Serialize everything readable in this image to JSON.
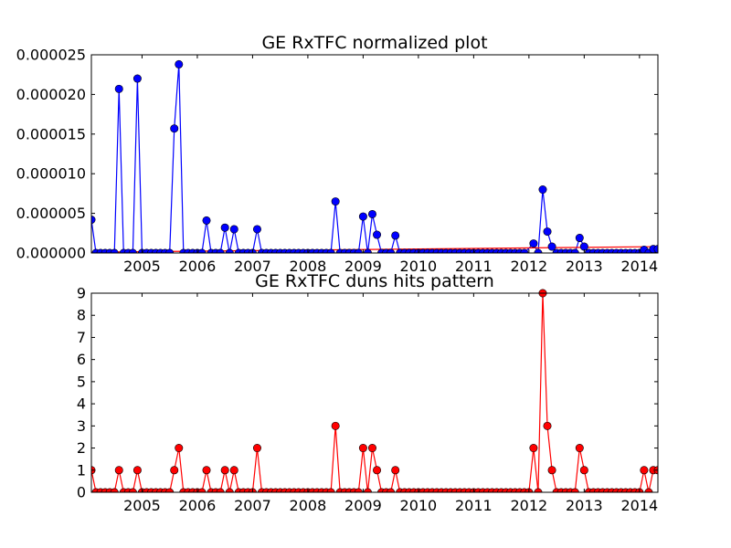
{
  "chart_data": [
    {
      "type": "line",
      "title": "GE RxTFC normalized plot",
      "xlabel": "",
      "ylabel": "",
      "x_ticks": [
        "2005",
        "2006",
        "2007",
        "2008",
        "2009",
        "2010",
        "2011",
        "2012",
        "2013",
        "2014"
      ],
      "y_ticks": [
        "0.000000",
        "0.000005",
        "0.000010",
        "0.000015",
        "0.000020",
        "0.000025"
      ],
      "xlim": [
        "2004-02",
        "2014-05"
      ],
      "ylim": [
        0,
        2.5e-05
      ],
      "grid": false,
      "series": [
        {
          "color": "#0000ff",
          "marker": "circle",
          "points": [
            [
              "2004-02",
              4.2e-06
            ],
            [
              "2004-03",
              0
            ],
            [
              "2004-04",
              0
            ],
            [
              "2004-05",
              0
            ],
            [
              "2004-06",
              0
            ],
            [
              "2004-07",
              0
            ],
            [
              "2004-08",
              2.07e-05
            ],
            [
              "2004-09",
              0
            ],
            [
              "2004-10",
              0
            ],
            [
              "2004-11",
              0
            ],
            [
              "2004-12",
              2.2e-05
            ],
            [
              "2005-01",
              0
            ],
            [
              "2005-02",
              0
            ],
            [
              "2005-03",
              0
            ],
            [
              "2005-04",
              0
            ],
            [
              "2005-05",
              0
            ],
            [
              "2005-06",
              0
            ],
            [
              "2005-07",
              0
            ],
            [
              "2005-08",
              1.57e-05
            ],
            [
              "2005-09",
              2.38e-05
            ],
            [
              "2005-10",
              0
            ],
            [
              "2005-11",
              0
            ],
            [
              "2005-12",
              0
            ],
            [
              "2006-01",
              0
            ],
            [
              "2006-02",
              0
            ],
            [
              "2006-03",
              4.1e-06
            ],
            [
              "2006-04",
              0
            ],
            [
              "2006-05",
              0
            ],
            [
              "2006-06",
              0
            ],
            [
              "2006-07",
              3.2e-06
            ],
            [
              "2006-08",
              0
            ],
            [
              "2006-09",
              3e-06
            ],
            [
              "2006-10",
              0
            ],
            [
              "2006-11",
              0
            ],
            [
              "2006-12",
              0
            ],
            [
              "2007-01",
              0
            ],
            [
              "2007-02",
              3e-06
            ],
            [
              "2007-03",
              0
            ],
            [
              "2007-04",
              0
            ],
            [
              "2007-05",
              0
            ],
            [
              "2007-06",
              0
            ],
            [
              "2007-07",
              0
            ],
            [
              "2007-08",
              0
            ],
            [
              "2007-09",
              0
            ],
            [
              "2007-10",
              0
            ],
            [
              "2007-11",
              0
            ],
            [
              "2007-12",
              0
            ],
            [
              "2008-01",
              0
            ],
            [
              "2008-02",
              0
            ],
            [
              "2008-03",
              0
            ],
            [
              "2008-04",
              0
            ],
            [
              "2008-05",
              0
            ],
            [
              "2008-06",
              0
            ],
            [
              "2008-07",
              6.5e-06
            ],
            [
              "2008-08",
              0
            ],
            [
              "2008-09",
              0
            ],
            [
              "2008-10",
              0
            ],
            [
              "2008-11",
              0
            ],
            [
              "2008-12",
              0
            ],
            [
              "2009-01",
              4.6e-06
            ],
            [
              "2009-02",
              0
            ],
            [
              "2009-03",
              4.9e-06
            ],
            [
              "2009-04",
              2.3e-06
            ],
            [
              "2009-05",
              0
            ],
            [
              "2009-06",
              0
            ],
            [
              "2009-07",
              0
            ],
            [
              "2009-08",
              2.2e-06
            ],
            [
              "2009-09",
              0
            ],
            [
              "2009-10",
              0
            ],
            [
              "2009-11",
              0
            ],
            [
              "2009-12",
              0
            ],
            [
              "2010-01",
              0
            ],
            [
              "2010-02",
              0
            ],
            [
              "2010-03",
              0
            ],
            [
              "2010-04",
              0
            ],
            [
              "2010-05",
              0
            ],
            [
              "2010-06",
              0
            ],
            [
              "2010-07",
              0
            ],
            [
              "2010-08",
              0
            ],
            [
              "2010-09",
              0
            ],
            [
              "2010-10",
              0
            ],
            [
              "2010-11",
              0
            ],
            [
              "2010-12",
              0
            ],
            [
              "2011-01",
              0
            ],
            [
              "2011-02",
              0
            ],
            [
              "2011-03",
              0
            ],
            [
              "2011-04",
              0
            ],
            [
              "2011-05",
              0
            ],
            [
              "2011-06",
              0
            ],
            [
              "2011-07",
              0
            ],
            [
              "2011-08",
              0
            ],
            [
              "2011-09",
              0
            ],
            [
              "2011-10",
              0
            ],
            [
              "2011-11",
              0
            ],
            [
              "2011-12",
              0
            ],
            [
              "2012-02",
              1.2e-06
            ],
            [
              "2012-03",
              0
            ],
            [
              "2012-04",
              8e-06
            ],
            [
              "2012-05",
              2.7e-06
            ],
            [
              "2012-06",
              8e-07
            ],
            [
              "2012-07",
              0
            ],
            [
              "2012-08",
              0
            ],
            [
              "2012-09",
              0
            ],
            [
              "2012-10",
              0
            ],
            [
              "2012-11",
              0
            ],
            [
              "2012-12",
              1.9e-06
            ],
            [
              "2013-01",
              8e-07
            ],
            [
              "2013-02",
              0
            ],
            [
              "2013-03",
              0
            ],
            [
              "2013-04",
              0
            ],
            [
              "2013-05",
              0
            ],
            [
              "2013-06",
              0
            ],
            [
              "2013-07",
              0
            ],
            [
              "2013-08",
              0
            ],
            [
              "2013-09",
              0
            ],
            [
              "2013-10",
              0
            ],
            [
              "2013-11",
              0
            ],
            [
              "2013-12",
              0
            ],
            [
              "2014-01",
              0
            ],
            [
              "2014-02",
              4e-07
            ],
            [
              "2014-03",
              0
            ],
            [
              "2014-04",
              5e-07
            ],
            [
              "2014-05",
              5e-07
            ]
          ]
        },
        {
          "color": "#ff0000",
          "marker": "none",
          "points": [
            [
              "2004-02",
              1e-07
            ],
            [
              "2014-05",
              8e-07
            ]
          ]
        }
      ]
    },
    {
      "type": "line",
      "title": "GE RxTFC duns hits pattern",
      "xlabel": "",
      "ylabel": "",
      "x_ticks": [
        "2005",
        "2006",
        "2007",
        "2008",
        "2009",
        "2010",
        "2011",
        "2012",
        "2013",
        "2014"
      ],
      "y_ticks": [
        "0",
        "1",
        "2",
        "3",
        "4",
        "5",
        "6",
        "7",
        "8",
        "9"
      ],
      "xlim": [
        "2004-02",
        "2014-05"
      ],
      "ylim": [
        0,
        9
      ],
      "grid": false,
      "series": [
        {
          "color": "#ff0000",
          "marker": "circle",
          "points": [
            [
              "2004-02",
              1
            ],
            [
              "2004-03",
              0
            ],
            [
              "2004-04",
              0
            ],
            [
              "2004-05",
              0
            ],
            [
              "2004-06",
              0
            ],
            [
              "2004-07",
              0
            ],
            [
              "2004-08",
              1
            ],
            [
              "2004-09",
              0
            ],
            [
              "2004-10",
              0
            ],
            [
              "2004-11",
              0
            ],
            [
              "2004-12",
              1
            ],
            [
              "2005-01",
              0
            ],
            [
              "2005-02",
              0
            ],
            [
              "2005-03",
              0
            ],
            [
              "2005-04",
              0
            ],
            [
              "2005-05",
              0
            ],
            [
              "2005-06",
              0
            ],
            [
              "2005-07",
              0
            ],
            [
              "2005-08",
              1
            ],
            [
              "2005-09",
              2
            ],
            [
              "2005-10",
              0
            ],
            [
              "2005-11",
              0
            ],
            [
              "2005-12",
              0
            ],
            [
              "2006-01",
              0
            ],
            [
              "2006-02",
              0
            ],
            [
              "2006-03",
              1
            ],
            [
              "2006-04",
              0
            ],
            [
              "2006-05",
              0
            ],
            [
              "2006-06",
              0
            ],
            [
              "2006-07",
              1
            ],
            [
              "2006-08",
              0
            ],
            [
              "2006-09",
              1
            ],
            [
              "2006-10",
              0
            ],
            [
              "2006-11",
              0
            ],
            [
              "2006-12",
              0
            ],
            [
              "2007-01",
              0
            ],
            [
              "2007-02",
              2
            ],
            [
              "2007-03",
              0
            ],
            [
              "2007-04",
              0
            ],
            [
              "2007-05",
              0
            ],
            [
              "2007-06",
              0
            ],
            [
              "2007-07",
              0
            ],
            [
              "2007-08",
              0
            ],
            [
              "2007-09",
              0
            ],
            [
              "2007-10",
              0
            ],
            [
              "2007-11",
              0
            ],
            [
              "2007-12",
              0
            ],
            [
              "2008-01",
              0
            ],
            [
              "2008-02",
              0
            ],
            [
              "2008-03",
              0
            ],
            [
              "2008-04",
              0
            ],
            [
              "2008-05",
              0
            ],
            [
              "2008-06",
              0
            ],
            [
              "2008-07",
              3
            ],
            [
              "2008-08",
              0
            ],
            [
              "2008-09",
              0
            ],
            [
              "2008-10",
              0
            ],
            [
              "2008-11",
              0
            ],
            [
              "2008-12",
              0
            ],
            [
              "2009-01",
              2
            ],
            [
              "2009-02",
              0
            ],
            [
              "2009-03",
              2
            ],
            [
              "2009-04",
              1
            ],
            [
              "2009-05",
              0
            ],
            [
              "2009-06",
              0
            ],
            [
              "2009-07",
              0
            ],
            [
              "2009-08",
              1
            ],
            [
              "2009-09",
              0
            ],
            [
              "2009-10",
              0
            ],
            [
              "2009-11",
              0
            ],
            [
              "2009-12",
              0
            ],
            [
              "2010-01",
              0
            ],
            [
              "2010-02",
              0
            ],
            [
              "2010-03",
              0
            ],
            [
              "2010-04",
              0
            ],
            [
              "2010-05",
              0
            ],
            [
              "2010-06",
              0
            ],
            [
              "2010-07",
              0
            ],
            [
              "2010-08",
              0
            ],
            [
              "2010-09",
              0
            ],
            [
              "2010-10",
              0
            ],
            [
              "2010-11",
              0
            ],
            [
              "2010-12",
              0
            ],
            [
              "2011-01",
              0
            ],
            [
              "2011-02",
              0
            ],
            [
              "2011-03",
              0
            ],
            [
              "2011-04",
              0
            ],
            [
              "2011-05",
              0
            ],
            [
              "2011-06",
              0
            ],
            [
              "2011-07",
              0
            ],
            [
              "2011-08",
              0
            ],
            [
              "2011-09",
              0
            ],
            [
              "2011-10",
              0
            ],
            [
              "2011-11",
              0
            ],
            [
              "2011-12",
              0
            ],
            [
              "2012-01",
              0
            ],
            [
              "2012-02",
              2
            ],
            [
              "2012-03",
              0
            ],
            [
              "2012-04",
              9
            ],
            [
              "2012-05",
              3
            ],
            [
              "2012-06",
              1
            ],
            [
              "2012-07",
              0
            ],
            [
              "2012-08",
              0
            ],
            [
              "2012-09",
              0
            ],
            [
              "2012-10",
              0
            ],
            [
              "2012-11",
              0
            ],
            [
              "2012-12",
              2
            ],
            [
              "2013-01",
              1
            ],
            [
              "2013-02",
              0
            ],
            [
              "2013-03",
              0
            ],
            [
              "2013-04",
              0
            ],
            [
              "2013-05",
              0
            ],
            [
              "2013-06",
              0
            ],
            [
              "2013-07",
              0
            ],
            [
              "2013-08",
              0
            ],
            [
              "2013-09",
              0
            ],
            [
              "2013-10",
              0
            ],
            [
              "2013-11",
              0
            ],
            [
              "2013-12",
              0
            ],
            [
              "2014-01",
              0
            ],
            [
              "2014-02",
              1
            ],
            [
              "2014-03",
              0
            ],
            [
              "2014-04",
              1
            ],
            [
              "2014-05",
              1
            ]
          ]
        }
      ]
    }
  ]
}
